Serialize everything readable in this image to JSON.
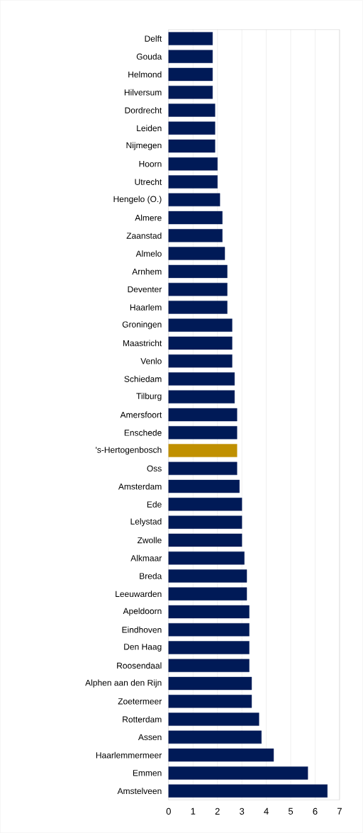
{
  "chart_data": {
    "type": "bar",
    "orientation": "horizontal",
    "categories": [
      "Delft",
      "Gouda",
      "Helmond",
      "Hilversum",
      "Dordrecht",
      "Leiden",
      "Nijmegen",
      "Hoorn",
      "Utrecht",
      "Hengelo (O.)",
      "Almere",
      "Zaanstad",
      "Almelo",
      "Arnhem",
      "Deventer",
      "Haarlem",
      "Groningen",
      "Maastricht",
      "Venlo",
      "Schiedam",
      "Tilburg",
      "Amersfoort",
      "Enschede",
      "'s-Hertogenbosch",
      "Oss",
      "Amsterdam",
      "Ede",
      "Lelystad",
      "Zwolle",
      "Alkmaar",
      "Breda",
      "Leeuwarden",
      "Apeldoorn",
      "Eindhoven",
      "Den Haag",
      "Roosendaal",
      "Alphen aan den Rijn",
      "Zoetermeer",
      "Rotterdam",
      "Assen",
      "Haarlemmermeer",
      "Emmen",
      "Amstelveen"
    ],
    "values": [
      1.8,
      1.8,
      1.8,
      1.8,
      1.9,
      1.9,
      1.9,
      2.0,
      2.0,
      2.1,
      2.2,
      2.2,
      2.3,
      2.4,
      2.4,
      2.4,
      2.6,
      2.6,
      2.6,
      2.7,
      2.7,
      2.8,
      2.8,
      2.8,
      2.8,
      2.9,
      3.0,
      3.0,
      3.0,
      3.1,
      3.2,
      3.2,
      3.3,
      3.3,
      3.3,
      3.3,
      3.4,
      3.4,
      3.7,
      3.8,
      4.3,
      5.7,
      6.5
    ],
    "colors": [
      "#001a57",
      "#001a57",
      "#001a57",
      "#001a57",
      "#001a57",
      "#001a57",
      "#001a57",
      "#001a57",
      "#001a57",
      "#001a57",
      "#001a57",
      "#001a57",
      "#001a57",
      "#001a57",
      "#001a57",
      "#001a57",
      "#001a57",
      "#001a57",
      "#001a57",
      "#001a57",
      "#001a57",
      "#001a57",
      "#001a57",
      "#c09000",
      "#001a57",
      "#001a57",
      "#001a57",
      "#001a57",
      "#001a57",
      "#001a57",
      "#001a57",
      "#001a57",
      "#001a57",
      "#001a57",
      "#001a57",
      "#001a57",
      "#001a57",
      "#001a57",
      "#001a57",
      "#001a57",
      "#001a57",
      "#001a57",
      "#001a57"
    ],
    "xlim": [
      0,
      7
    ],
    "xticks": [
      0,
      1,
      2,
      3,
      4,
      5,
      6,
      7
    ],
    "grid": "x"
  }
}
